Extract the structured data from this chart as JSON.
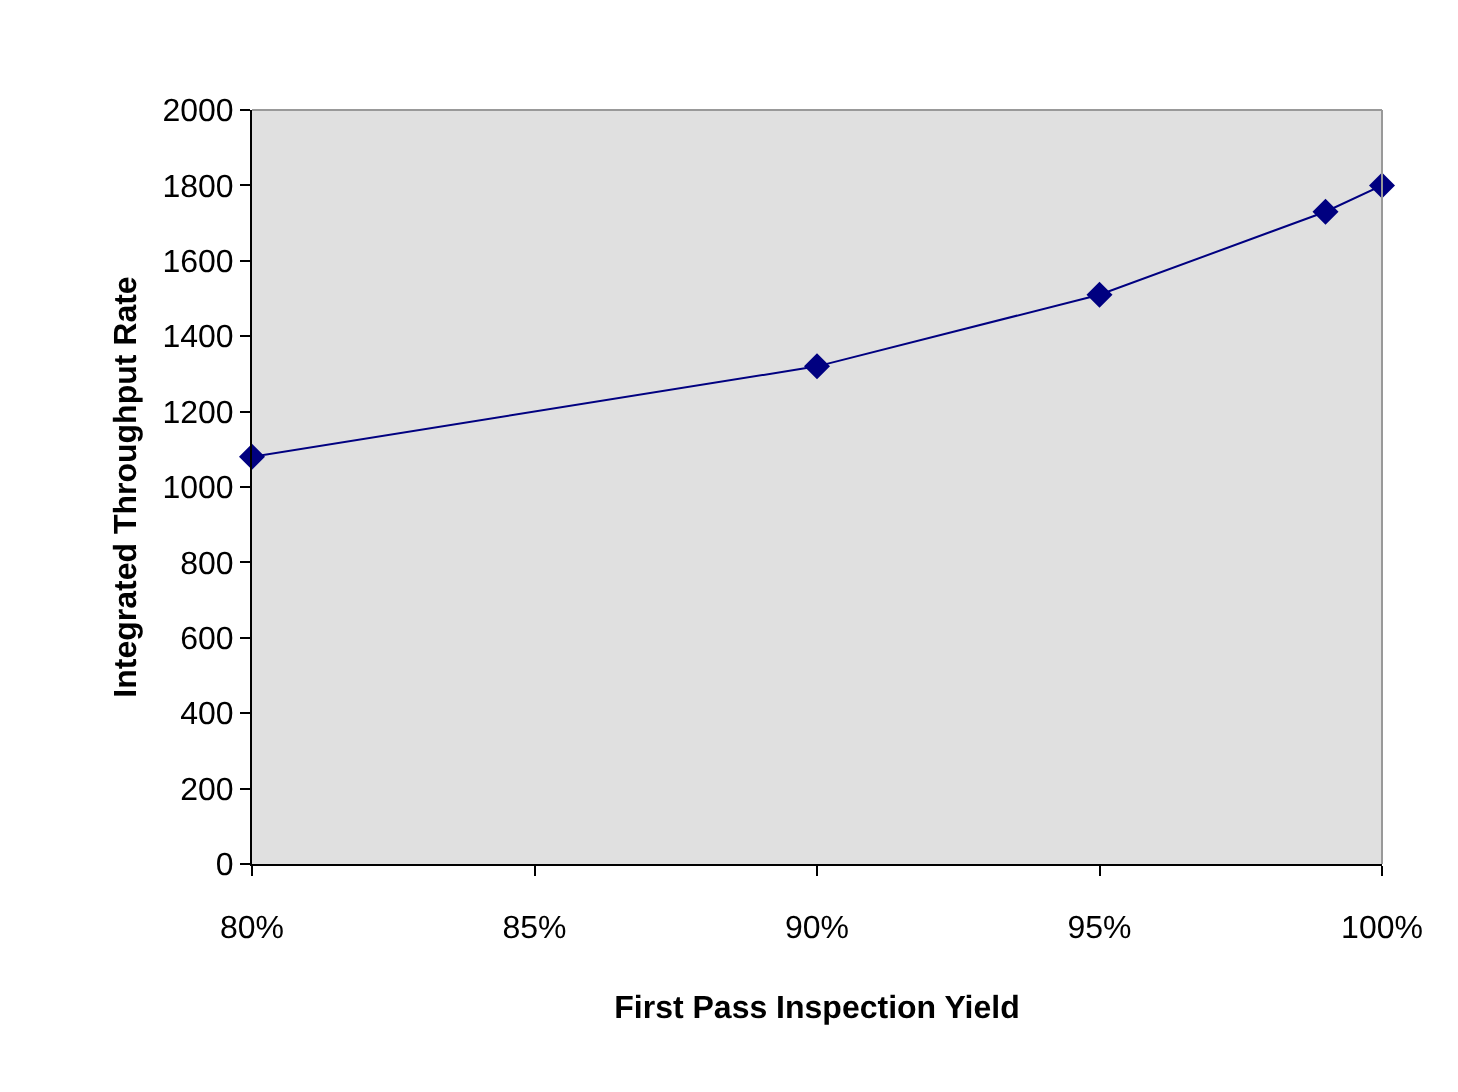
{
  "chart_data": {
    "type": "line",
    "xlabel": "First Pass Inspection Yield",
    "ylabel": "Integrated Throughput Rate",
    "x": [
      80,
      90,
      95,
      99,
      100
    ],
    "series": [
      {
        "color": "#000080",
        "values": [
          1080,
          1320,
          1510,
          1730,
          1800
        ]
      }
    ],
    "xlim": [
      80,
      100
    ],
    "xticks": [
      {
        "value": 80,
        "label": "80%"
      },
      {
        "value": 85,
        "label": "85%"
      },
      {
        "value": 90,
        "label": "90%"
      },
      {
        "value": 95,
        "label": "95%"
      },
      {
        "value": 100,
        "label": "100%"
      }
    ],
    "ylim": [
      0,
      2000
    ],
    "yticks": [
      0,
      200,
      400,
      600,
      800,
      1000,
      1200,
      1400,
      1600,
      1800,
      2000
    ],
    "grid": false,
    "marker": "diamond",
    "line_style": "solid"
  }
}
